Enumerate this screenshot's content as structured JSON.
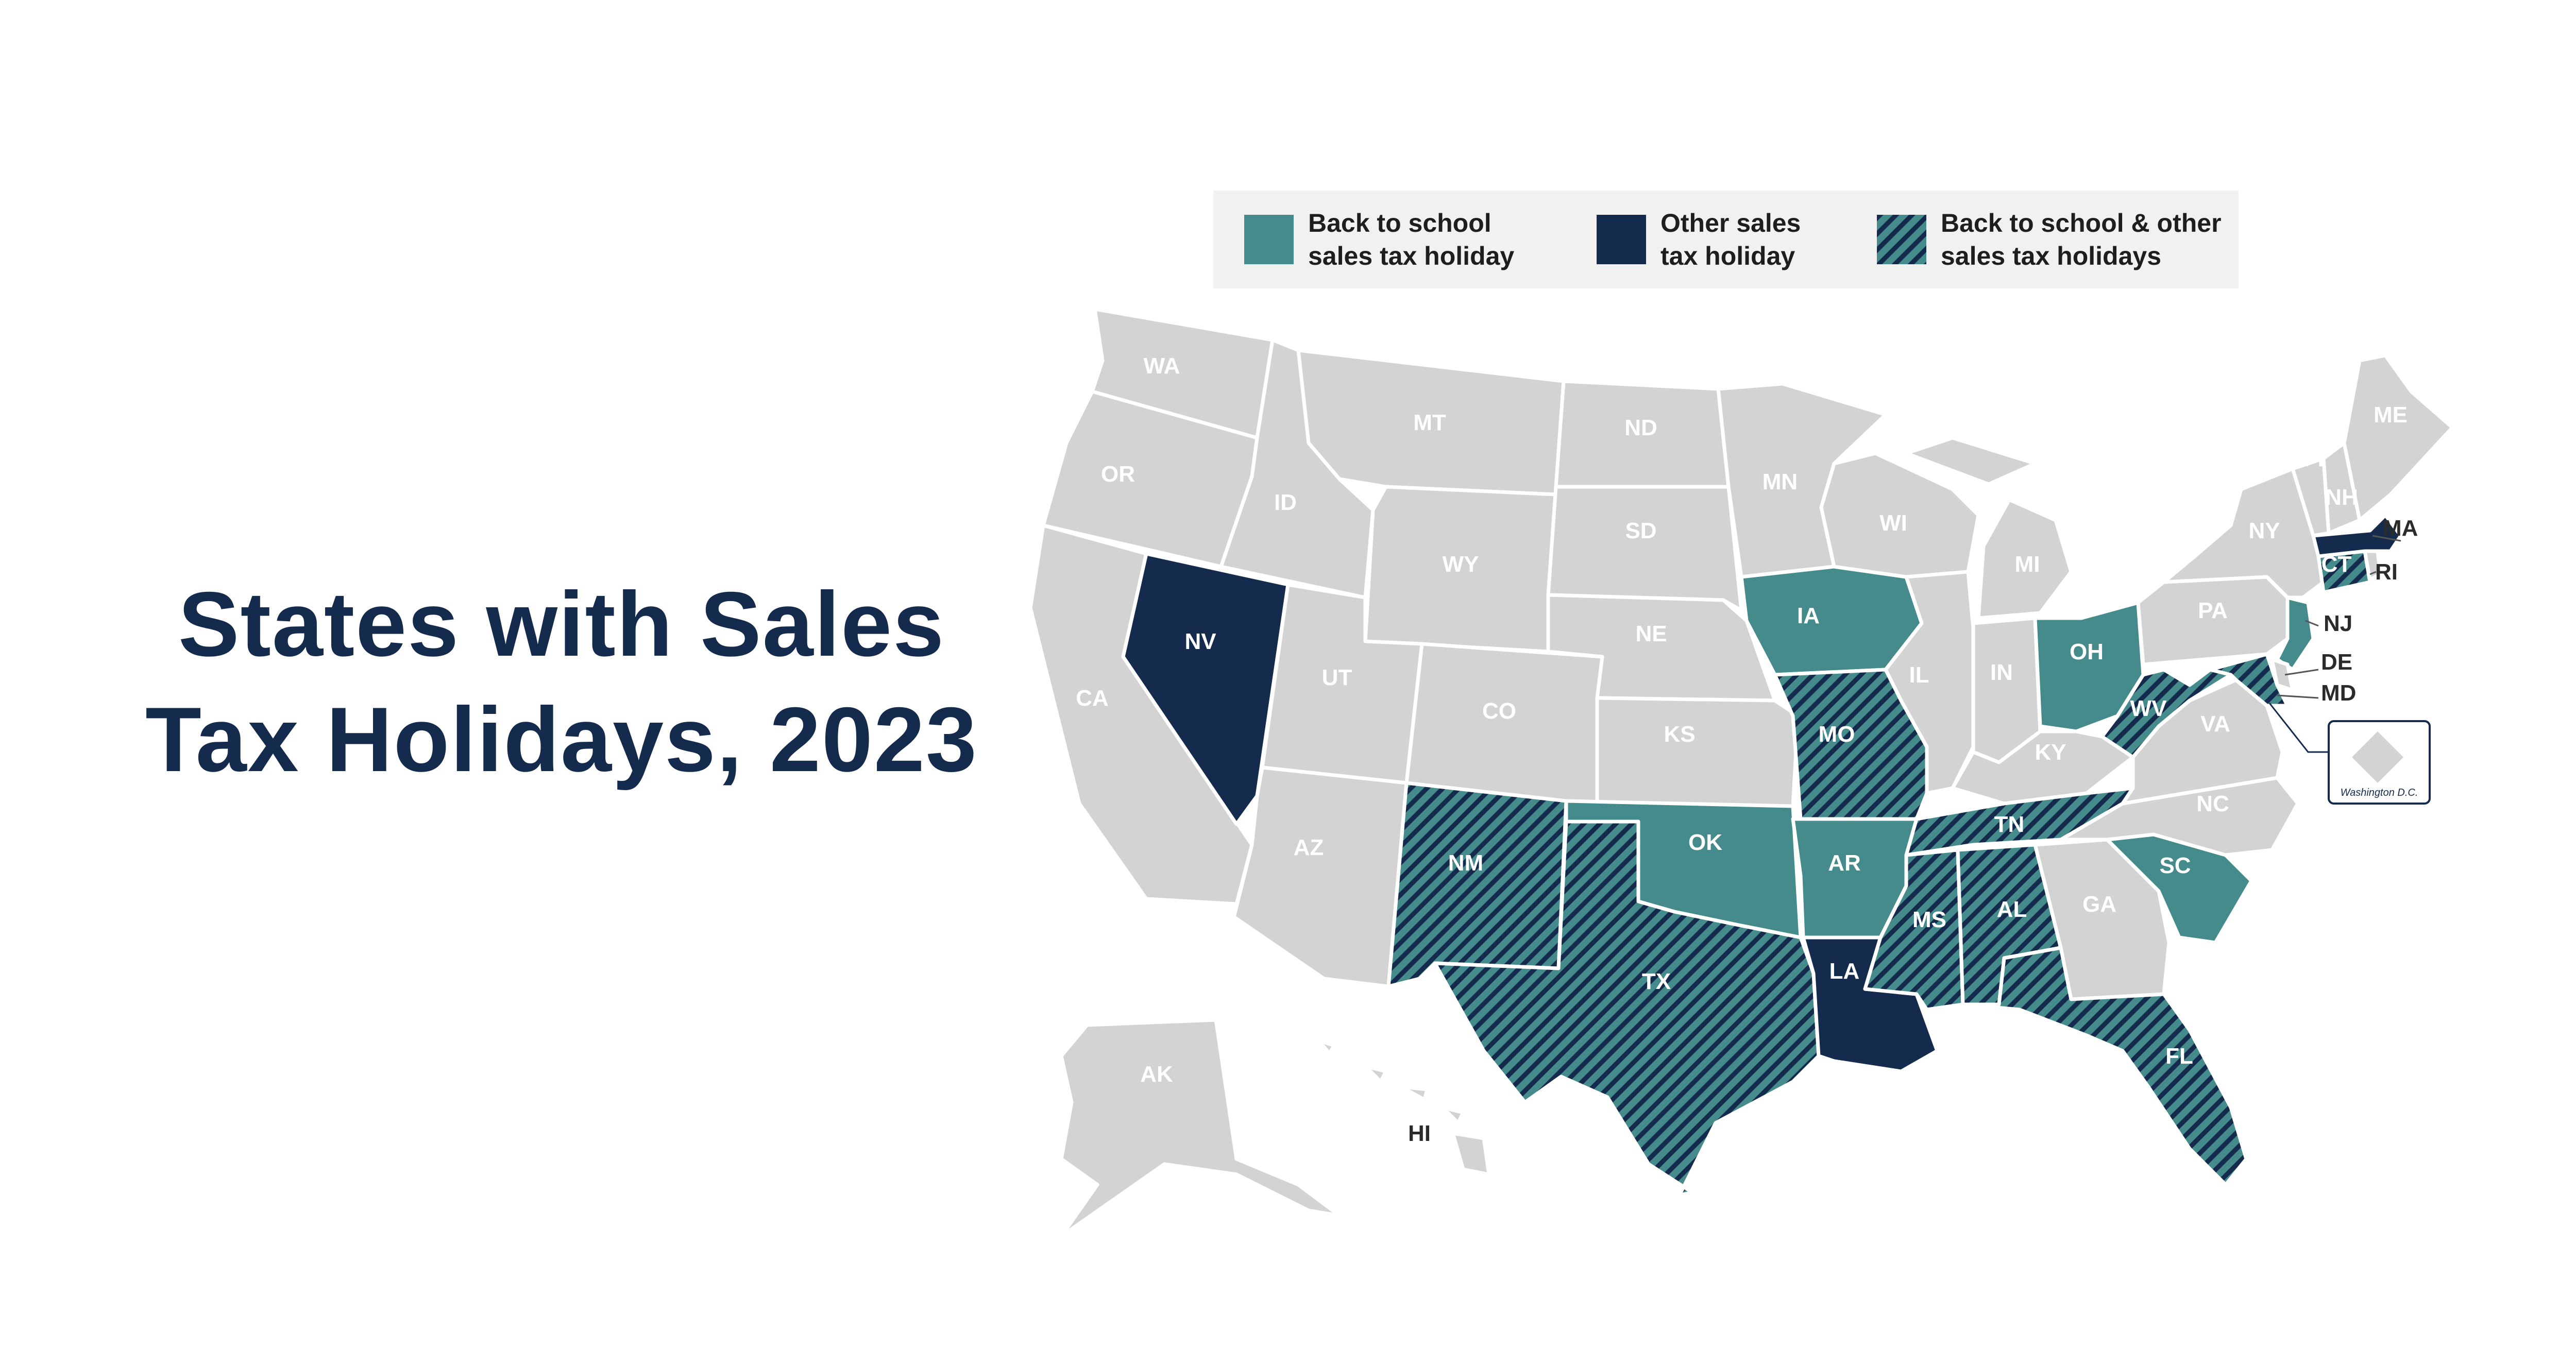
{
  "title": {
    "line1": "States with Sales",
    "line2": "Tax Holidays, 2023"
  },
  "colors": {
    "none": "#d3d3d3",
    "back_to_school": "#458b8b",
    "other": "#142b4d",
    "both": "hatched #458b8b / #142b4d",
    "title": "#142b4d"
  },
  "legend": {
    "back_to_school": {
      "line1": "Back to school",
      "line2": "sales tax holiday"
    },
    "other": {
      "line1": "Other sales",
      "line2": "tax holiday"
    },
    "both": {
      "line1": "Back to school & other",
      "line2": "sales tax holidays"
    }
  },
  "inset_label": "Washington D.C.",
  "states": {
    "WA": "none",
    "OR": "none",
    "CA": "none",
    "NV": "other",
    "ID": "none",
    "MT": "none",
    "WY": "none",
    "UT": "none",
    "AZ": "none",
    "CO": "none",
    "NM": "both",
    "ND": "none",
    "SD": "none",
    "NE": "none",
    "KS": "none",
    "OK": "back_to_school",
    "TX": "both",
    "MN": "none",
    "IA": "back_to_school",
    "MO": "both",
    "AR": "back_to_school",
    "LA": "other",
    "WI": "none",
    "IL": "none",
    "MS": "both",
    "MI": "none",
    "IN": "none",
    "KY": "none",
    "TN": "both",
    "AL": "both",
    "OH": "back_to_school",
    "WV": "both",
    "VA": "none",
    "NC": "none",
    "SC": "back_to_school",
    "GA": "none",
    "FL": "both",
    "PA": "none",
    "NY": "none",
    "NJ": "back_to_school",
    "DE": "none",
    "MD": "both",
    "CT": "both",
    "RI": "none",
    "MA": "other",
    "VT": "none",
    "NH": "none",
    "ME": "none",
    "AK": "none",
    "HI": "none"
  }
}
